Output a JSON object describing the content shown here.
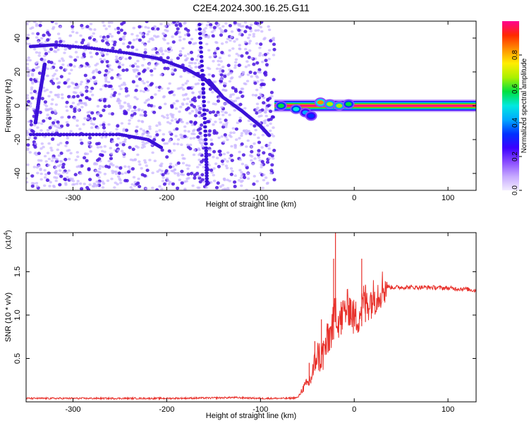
{
  "title": "C2E4.2024.300.16.25.G11",
  "colors": {
    "snr_line": "#e8302a",
    "doppler_main": "#ff2a00",
    "speckle_dark": "#4a14e0",
    "speckle_light": "#c8b4ff",
    "colormap": [
      "#f2ecff",
      "#c6a8ff",
      "#8a4cff",
      "#3c00ff",
      "#0030ff",
      "#00a8ff",
      "#00e8e0",
      "#00e040",
      "#aaf000",
      "#ffee00",
      "#ff9000",
      "#ff2a00",
      "#ff0090"
    ]
  },
  "chart_data": [
    {
      "type": "heatmap",
      "xlabel": "Height of straight line (km)",
      "ylabel": "Frequency (Hz)",
      "xlim": [
        -350,
        130
      ],
      "ylim": [
        -50,
        50
      ],
      "xticks": [
        -300,
        -200,
        -100,
        0,
        100
      ],
      "yticks": [
        -40,
        -20,
        0,
        20,
        40
      ],
      "grid": false,
      "colorbar": {
        "label": "Normalized spectral amplitude",
        "range": [
          0,
          1
        ],
        "ticks": [
          "0.0",
          "0.2",
          "0.4",
          "0.6",
          "0.8"
        ],
        "tick_values": [
          0.0,
          0.2,
          0.4,
          0.6,
          0.8
        ]
      },
      "features": {
        "noise_region_x": [
          -350,
          -85
        ],
        "main_signal": {
          "x_start": -85,
          "x_end": 130,
          "frequency": 0,
          "amplitude": 1.0
        },
        "scattered_blobs": [
          {
            "x": -78,
            "y": 0,
            "amp": 0.55
          },
          {
            "x": -62,
            "y": -2,
            "amp": 0.5
          },
          {
            "x": -52,
            "y": -4,
            "amp": 0.45
          },
          {
            "x": -46,
            "y": -6,
            "amp": 0.35
          },
          {
            "x": -36,
            "y": 2,
            "amp": 0.85
          },
          {
            "x": -26,
            "y": 1,
            "amp": 0.7
          },
          {
            "x": -16,
            "y": 0,
            "amp": 0.65
          },
          {
            "x": -6,
            "y": 1,
            "amp": 0.6
          }
        ],
        "tracks": [
          {
            "points": [
              [
                -345,
                35
              ],
              [
                -320,
                36
              ],
              [
                -280,
                34
              ],
              [
                -240,
                31
              ],
              [
                -210,
                28
              ],
              [
                -180,
                22
              ],
              [
                -160,
                16
              ],
              [
                -145,
                8
              ]
            ]
          },
          {
            "points": [
              [
                -345,
                -17
              ],
              [
                -300,
                -17
              ],
              [
                -250,
                -17
              ],
              [
                -220,
                -20
              ],
              [
                -205,
                -25
              ]
            ]
          },
          {
            "points": [
              [
                -165,
                48
              ],
              [
                -161,
                10
              ],
              [
                -158,
                -25
              ],
              [
                -157,
                -48
              ]
            ]
          },
          {
            "points": [
              [
                -155,
                15
              ],
              [
                -140,
                5
              ],
              [
                -120,
                -3
              ],
              [
                -100,
                -12
              ],
              [
                -90,
                -18
              ]
            ]
          },
          {
            "points": [
              [
                -340,
                -10
              ],
              [
                -336,
                5
              ],
              [
                -332,
                18
              ],
              [
                -330,
                25
              ]
            ]
          }
        ]
      }
    },
    {
      "type": "line",
      "xlabel": "Height of straight line (km)",
      "ylabel": "SNR (10 * v/v)",
      "y_multiplier": "(x10",
      "y_multiplier_exp": "4",
      "y_multiplier_close": ")",
      "xlim": [
        -350,
        130
      ],
      "ylim": [
        0,
        1.95
      ],
      "xticks": [
        -300,
        -200,
        -100,
        0,
        100
      ],
      "yticks": [
        0.5,
        1.0,
        1.5
      ],
      "ytick_labels": [
        "0.5",
        "1.0",
        "1.5"
      ],
      "grid": false,
      "series": [
        {
          "x": [
            -350,
            -300,
            -250,
            -200,
            -150,
            -130,
            -100,
            -70,
            -60,
            -55,
            -50,
            -45,
            -40,
            -35,
            -30,
            -25,
            -22,
            -20,
            -18,
            -15,
            -10,
            -5,
            0,
            5,
            10,
            15,
            20,
            25,
            30,
            35,
            40,
            60,
            80,
            100,
            120,
            130
          ],
          "values": [
            0.04,
            0.04,
            0.04,
            0.04,
            0.045,
            0.05,
            0.04,
            0.04,
            0.05,
            0.15,
            0.2,
            0.3,
            0.55,
            0.5,
            0.65,
            0.8,
            0.9,
            1.15,
            0.95,
            0.95,
            1.05,
            1.1,
            0.95,
            1.0,
            1.15,
            1.15,
            1.2,
            1.25,
            1.32,
            1.33,
            1.32,
            1.32,
            1.32,
            1.31,
            1.3,
            1.28
          ],
          "spikes": [
            {
              "x": -48,
              "y": 0.45
            },
            {
              "x": -42,
              "y": 0.7
            },
            {
              "x": -35,
              "y": 0.95
            },
            {
              "x": -28,
              "y": 0.9
            },
            {
              "x": -22,
              "y": 1.65
            },
            {
              "x": -20,
              "y": 1.95
            },
            {
              "x": -14,
              "y": 1.1
            },
            {
              "x": -5,
              "y": 1.2
            },
            {
              "x": 8,
              "y": 1.65
            },
            {
              "x": 12,
              "y": 1.35
            }
          ]
        }
      ]
    }
  ]
}
